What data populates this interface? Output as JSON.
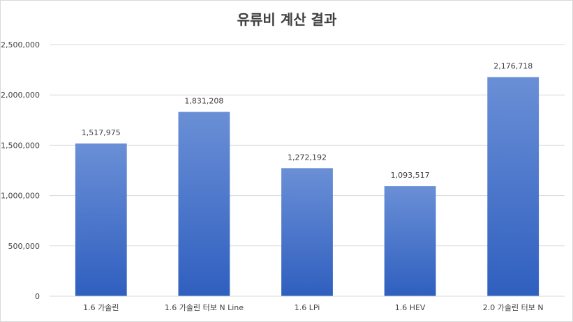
{
  "chart_data": {
    "type": "bar",
    "title": "유류비 계산 결과",
    "xlabel": "",
    "ylabel": "",
    "categories": [
      "1.6 가솔린",
      "1.6 가솔린 터보 N Line",
      "1.6 LPi",
      "1.6 HEV",
      "2.0 가솔린 터보 N"
    ],
    "values": [
      1517975,
      1831208,
      1272192,
      1093517,
      2176718
    ],
    "value_labels": [
      "1,517,975",
      "1,831,208",
      "1,272,192",
      "1,093,517",
      "2,176,718"
    ],
    "ylim": [
      0,
      2500000
    ],
    "yticks": [
      0,
      500000,
      1000000,
      1500000,
      2000000,
      2500000
    ],
    "ytick_labels": [
      "0",
      "500,000",
      "1,000,000",
      "1,500,000",
      "2,000,000",
      "2,500,000"
    ],
    "grid": true,
    "legend": "none",
    "colors": {
      "bar_top": "#6a8fd6",
      "bar_bottom": "#2f5fbf",
      "grid": "#d9d9d9",
      "text": "#404040"
    }
  }
}
